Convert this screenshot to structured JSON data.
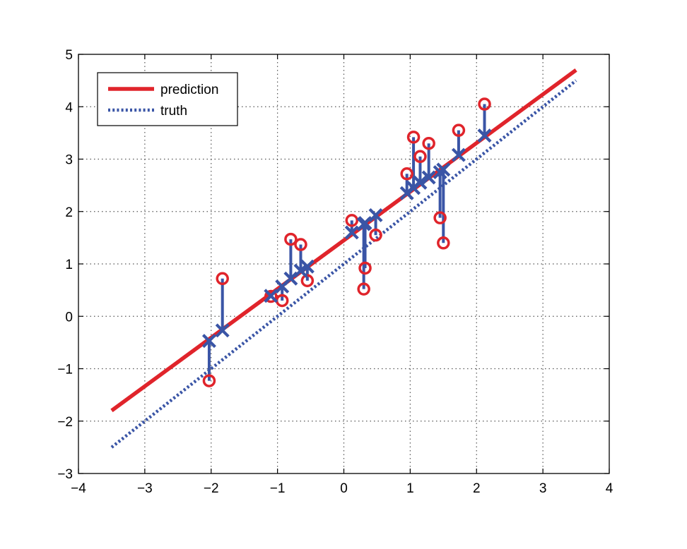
{
  "chart_data": {
    "type": "scatter",
    "title": "",
    "xlabel": "",
    "ylabel": "",
    "xlim": [
      -4,
      4
    ],
    "ylim": [
      -3,
      5
    ],
    "xticks": [
      -4,
      -3,
      -2,
      -1,
      0,
      1,
      2,
      3,
      4
    ],
    "yticks": [
      -3,
      -2,
      -1,
      0,
      1,
      2,
      3,
      4,
      5
    ],
    "xtick_labels": [
      "−4",
      "−3",
      "−2",
      "−1",
      "0",
      "1",
      "2",
      "3",
      "4"
    ],
    "ytick_labels": [
      "−3",
      "−2",
      "−1",
      "0",
      "1",
      "2",
      "3",
      "4",
      "5"
    ],
    "grid": true,
    "legend_position": "top-left",
    "lines": [
      {
        "name": "prediction",
        "style": "solid",
        "color": "#e0242b",
        "x": [
          -3.5,
          3.5
        ],
        "y": [
          -1.8,
          4.7
        ]
      },
      {
        "name": "truth",
        "style": "dotted",
        "color": "#3a55a6",
        "x": [
          -3.5,
          3.5
        ],
        "y": [
          -2.5,
          4.5
        ]
      }
    ],
    "observations": {
      "marker": "circle",
      "color": "#e0242b",
      "x": [
        -2.03,
        -1.83,
        -1.1,
        -0.93,
        -0.8,
        -0.65,
        -0.55,
        0.12,
        0.32,
        0.3,
        0.48,
        0.95,
        1.05,
        1.15,
        1.28,
        1.45,
        1.5,
        1.73,
        2.12
      ],
      "y": [
        -1.23,
        0.72,
        0.38,
        0.3,
        1.47,
        1.37,
        0.68,
        1.83,
        0.92,
        0.52,
        1.55,
        2.72,
        3.42,
        3.05,
        3.3,
        1.88,
        1.4,
        3.55,
        4.05
      ]
    },
    "predictions": {
      "marker": "x",
      "color": "#3a55a6",
      "x": [
        -2.03,
        -1.83,
        -1.1,
        -0.93,
        -0.8,
        -0.65,
        -0.55,
        0.12,
        0.32,
        0.3,
        0.48,
        0.95,
        1.05,
        1.15,
        1.28,
        1.45,
        1.5,
        1.73,
        2.12
      ],
      "y": [
        -0.47,
        -0.27,
        0.39,
        0.57,
        0.72,
        0.87,
        0.95,
        1.6,
        1.78,
        1.76,
        1.93,
        2.35,
        2.45,
        2.55,
        2.65,
        2.75,
        2.8,
        3.08,
        3.45
      ]
    },
    "colors": {
      "grid": "#555555",
      "axes": "#000000"
    }
  }
}
